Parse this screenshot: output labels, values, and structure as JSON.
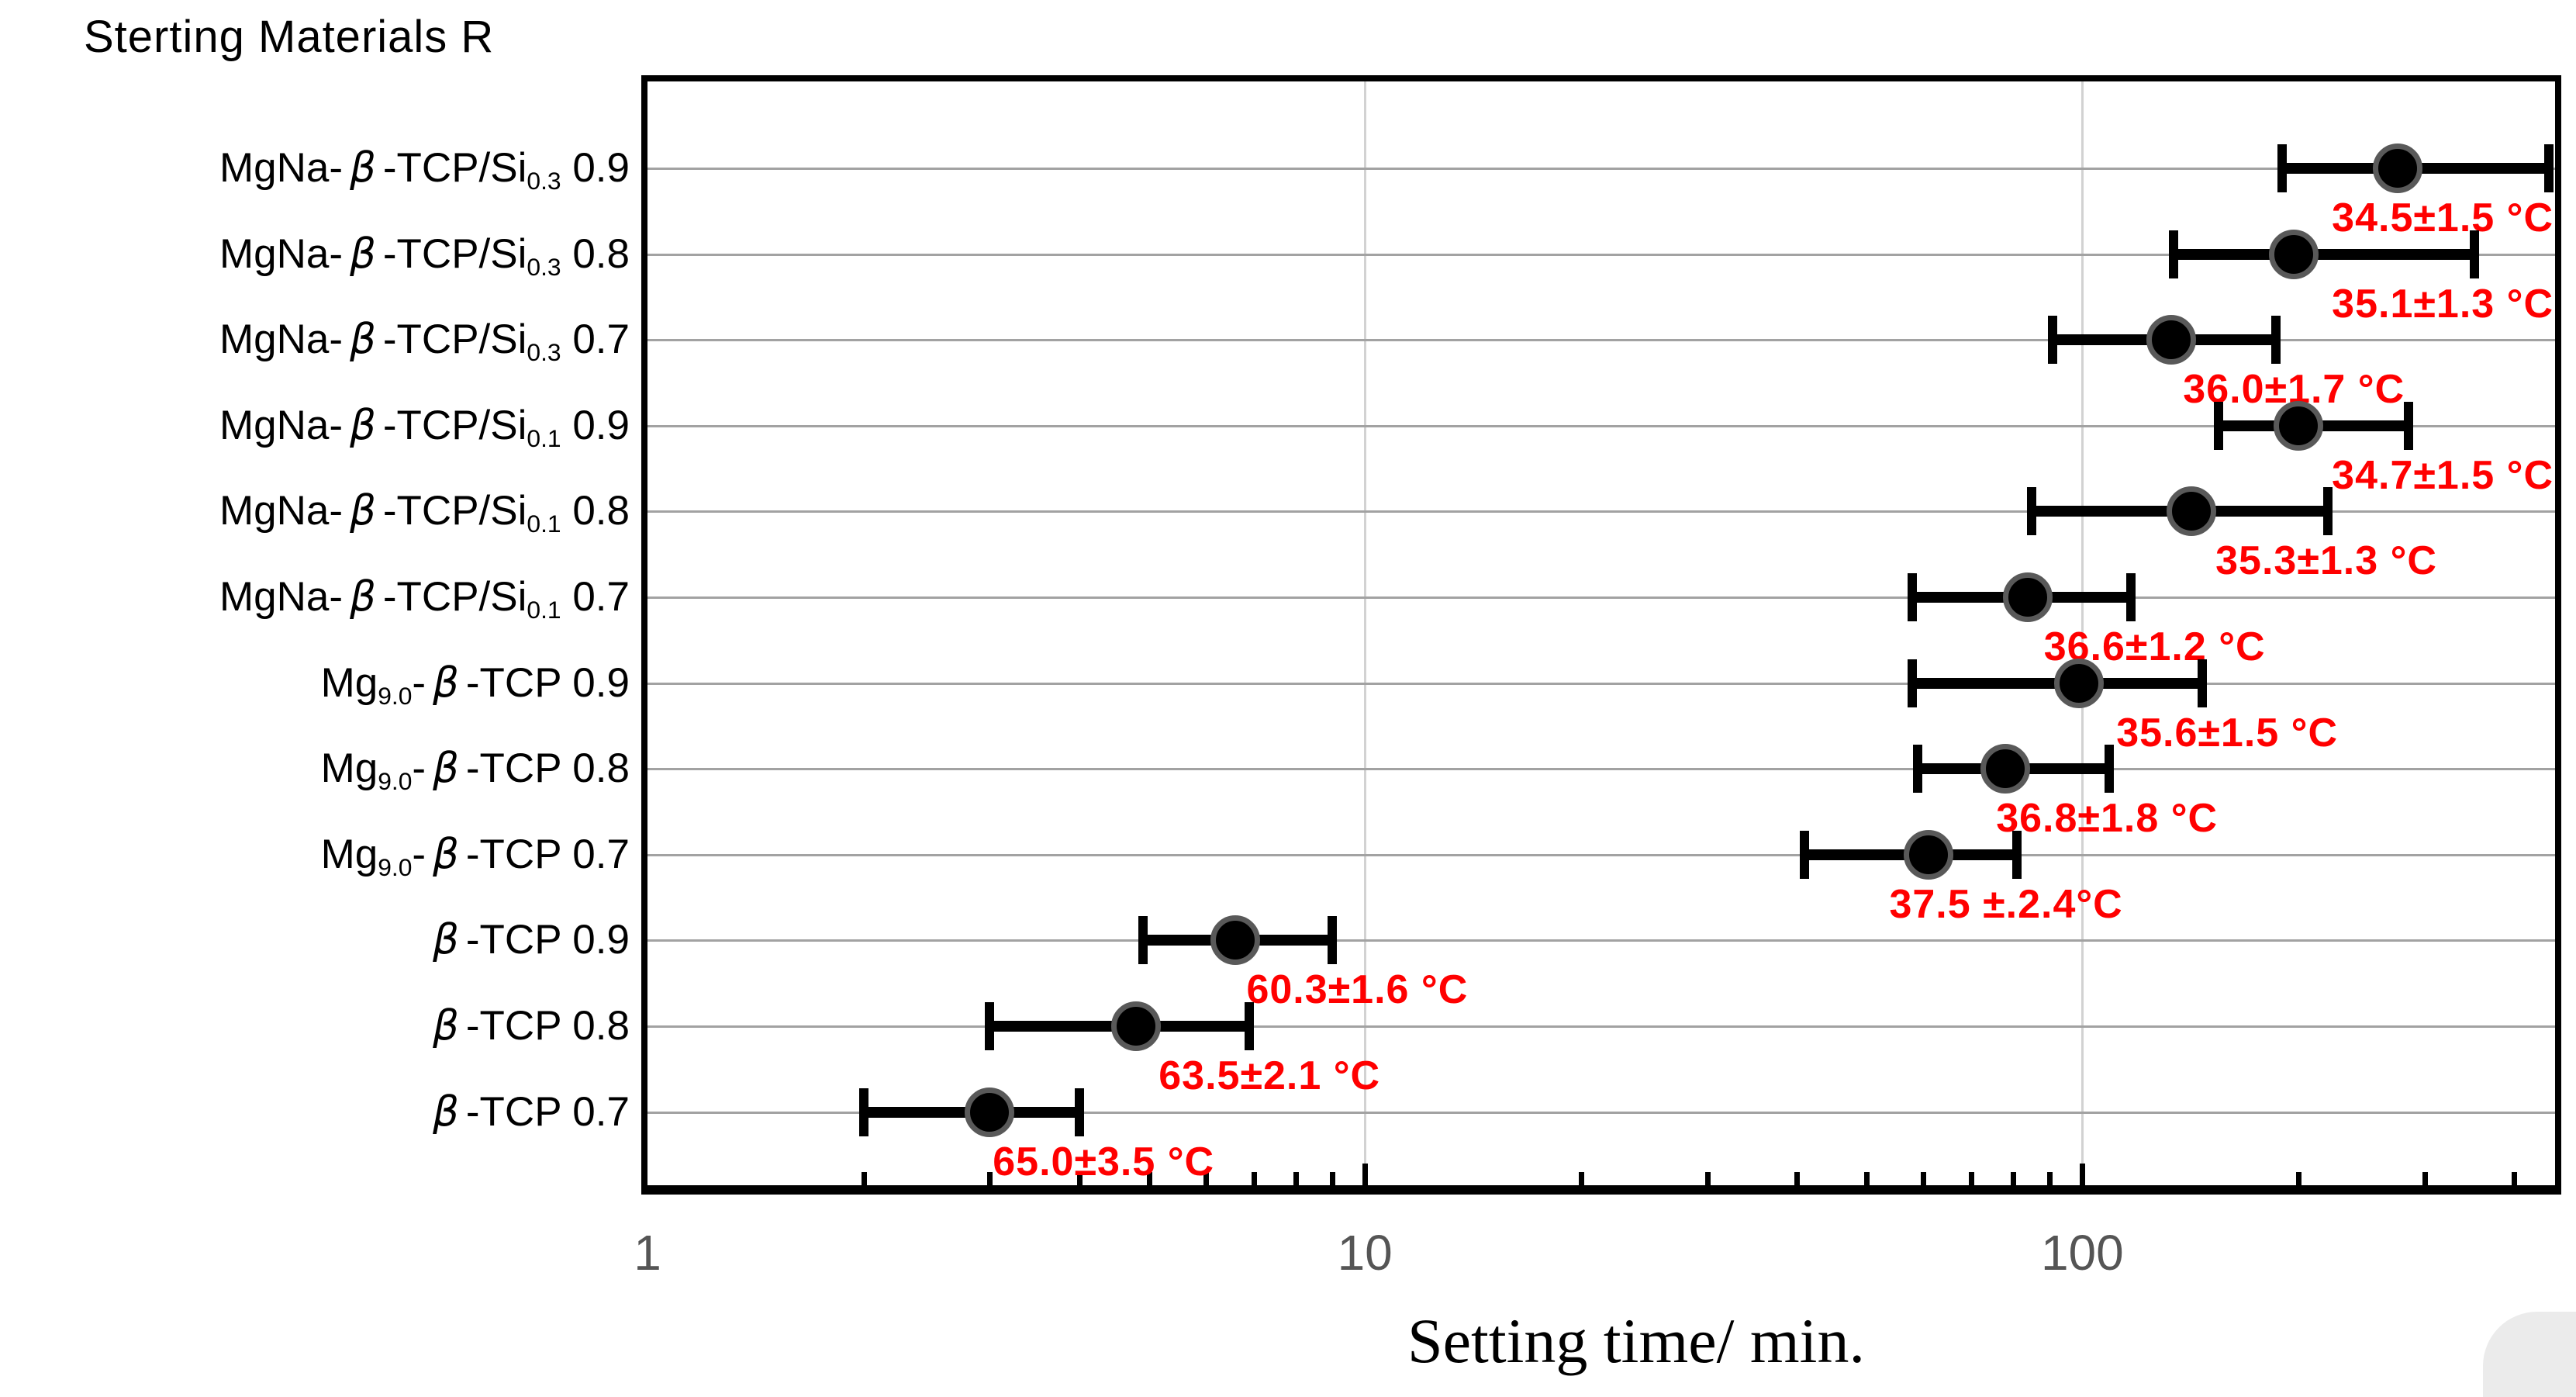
{
  "header": {
    "column_title": "Sterting Materials R"
  },
  "chart_data": {
    "type": "scatter",
    "subtype": "horizontal-error-bar",
    "title": "",
    "xlabel": "Setting time/ min.",
    "ylabel_header": "Sterting Materials R",
    "x_scale": "log",
    "xlim": [
      1,
      456
    ],
    "x_major_ticks": [
      1,
      10,
      100
    ],
    "x_minor_ticks": [
      2,
      3,
      4,
      5,
      6,
      7,
      8,
      9,
      20,
      30,
      40,
      50,
      60,
      70,
      80,
      90,
      200,
      300,
      400
    ],
    "grid": true,
    "legend": false,
    "rows": [
      {
        "label_text": "MgNa-β-TCP/Si0.3 0.9",
        "label_segments": [
          {
            "t": "MgNa-"
          },
          {
            "t": "β",
            "style": "italic"
          },
          {
            "t": "-TCP/Si"
          },
          {
            "t": "0.3",
            "style": "sub"
          },
          {
            "t": " 0.9"
          }
        ],
        "time": 275,
        "time_low": 190,
        "time_high": 450,
        "temp": 34.5,
        "temp_err": 1.5,
        "temp_label": "34.5±1.5 °C",
        "label_align": "right",
        "label_x_pct": null
      },
      {
        "label_text": "MgNa-β-TCP/Si0.3 0.8",
        "label_segments": [
          {
            "t": "MgNa-"
          },
          {
            "t": "β",
            "style": "italic"
          },
          {
            "t": "-TCP/Si"
          },
          {
            "t": "0.3",
            "style": "sub"
          },
          {
            "t": " 0.8"
          }
        ],
        "time": 197,
        "time_low": 134,
        "time_high": 352,
        "temp": 35.1,
        "temp_err": 1.3,
        "temp_label": "35.1±1.3 °C",
        "label_align": "right",
        "label_x_pct": null
      },
      {
        "label_text": "MgNa-β-TCP/Si0.3 0.7",
        "label_segments": [
          {
            "t": "MgNa-"
          },
          {
            "t": "β",
            "style": "italic"
          },
          {
            "t": "-TCP/Si"
          },
          {
            "t": "0.3",
            "style": "sub"
          },
          {
            "t": " 0.7"
          }
        ],
        "time": 133,
        "time_low": 91,
        "time_high": 186,
        "temp": 36.0,
        "temp_err": 1.7,
        "temp_label": "36.0±1.7 °C",
        "label_align": "left",
        "label_x_pct": 80.5
      },
      {
        "label_text": "MgNa-β-TCP/Si0.1 0.9",
        "label_segments": [
          {
            "t": "MgNa-"
          },
          {
            "t": "β",
            "style": "italic"
          },
          {
            "t": "-TCP/Si"
          },
          {
            "t": "0.1",
            "style": "sub"
          },
          {
            "t": " 0.9"
          }
        ],
        "time": 200,
        "time_low": 155,
        "time_high": 285,
        "temp": 34.7,
        "temp_err": 1.5,
        "temp_label": "34.7±1.5 °C",
        "label_align": "right",
        "label_x_pct": null
      },
      {
        "label_text": "MgNa-β-TCP/Si0.1 0.8",
        "label_segments": [
          {
            "t": "MgNa-"
          },
          {
            "t": "β",
            "style": "italic"
          },
          {
            "t": "-TCP/Si"
          },
          {
            "t": "0.1",
            "style": "sub"
          },
          {
            "t": " 0.8"
          }
        ],
        "time": 142,
        "time_low": 85,
        "time_high": 220,
        "temp": 35.3,
        "temp_err": 1.3,
        "temp_label": "35.3±1.3 °C",
        "label_align": "left",
        "label_x_pct": 82.2
      },
      {
        "label_text": "MgNa-β-TCP/Si0.1 0.7",
        "label_segments": [
          {
            "t": "MgNa-"
          },
          {
            "t": "β",
            "style": "italic"
          },
          {
            "t": "-TCP/Si"
          },
          {
            "t": "0.1",
            "style": "sub"
          },
          {
            "t": " 0.7"
          }
        ],
        "time": 84,
        "time_low": 58,
        "time_high": 117,
        "temp": 36.6,
        "temp_err": 1.2,
        "temp_label": "36.6±1.2 °C",
        "label_align": "left",
        "label_x_pct": 73.2
      },
      {
        "label_text": "Mg9.0-β-TCP 0.9",
        "label_segments": [
          {
            "t": "Mg"
          },
          {
            "t": "9.0",
            "style": "sub"
          },
          {
            "t": "-"
          },
          {
            "t": "β",
            "style": "italic"
          },
          {
            "t": "-TCP 0.9"
          }
        ],
        "time": 99,
        "time_low": 58,
        "time_high": 147,
        "temp": 35.6,
        "temp_err": 1.5,
        "temp_label": "35.6±1.5 °C",
        "label_align": "left",
        "label_x_pct": 77.0
      },
      {
        "label_text": "Mg9.0-β-TCP 0.8",
        "label_segments": [
          {
            "t": "Mg"
          },
          {
            "t": "9.0",
            "style": "sub"
          },
          {
            "t": "-"
          },
          {
            "t": "β",
            "style": "italic"
          },
          {
            "t": "-TCP 0.8"
          }
        ],
        "time": 78,
        "time_low": 59,
        "time_high": 109,
        "temp": 36.8,
        "temp_err": 1.8,
        "temp_label": "36.8±1.8 °C",
        "label_align": "left",
        "label_x_pct": 70.7
      },
      {
        "label_text": "Mg9.0-β-TCP 0.7",
        "label_segments": [
          {
            "t": "Mg"
          },
          {
            "t": "9.0",
            "style": "sub"
          },
          {
            "t": "-"
          },
          {
            "t": "β",
            "style": "italic"
          },
          {
            "t": "-TCP 0.7"
          }
        ],
        "time": 61,
        "time_low": 41,
        "time_high": 81,
        "temp": 37.5,
        "temp_err": 2.4,
        "temp_label": "37.5 ±.2.4°C",
        "label_align": "left",
        "label_x_pct": 65.1
      },
      {
        "label_text": "β-TCP 0.9",
        "label_segments": [
          {
            "t": "β",
            "style": "italic"
          },
          {
            "t": "-TCP 0.9"
          }
        ],
        "time": 6.6,
        "time_low": 4.9,
        "time_high": 9.0,
        "temp": 60.3,
        "temp_err": 1.6,
        "temp_label": "60.3±1.6 °C",
        "label_align": "left",
        "label_x_pct": 31.4
      },
      {
        "label_text": "β-TCP 0.8",
        "label_segments": [
          {
            "t": "β",
            "style": "italic"
          },
          {
            "t": "-TCP 0.8"
          }
        ],
        "time": 4.8,
        "time_low": 3.0,
        "time_high": 6.9,
        "temp": 63.5,
        "temp_err": 2.1,
        "temp_label": "63.5±2.1 °C",
        "label_align": "left",
        "label_x_pct": 26.8
      },
      {
        "label_text": "β-TCP 0.7",
        "label_segments": [
          {
            "t": "β",
            "style": "italic"
          },
          {
            "t": "-TCP 0.7"
          }
        ],
        "time": 3.0,
        "time_low": 2.0,
        "time_high": 4.0,
        "temp": 65.0,
        "temp_err": 3.5,
        "temp_label": "65.0±3.5 °C",
        "label_align": "left",
        "label_x_pct": 18.1
      }
    ]
  },
  "colors": {
    "marker": "#000000",
    "marker_ring": "#595959",
    "error_bar": "#000000",
    "annotation": "#ff0000",
    "gridline_h": "#a2a2a2",
    "gridline_v": "#d2d2d2",
    "tick_label": "#555555",
    "axis": "#000000",
    "background": "#ffffff"
  }
}
